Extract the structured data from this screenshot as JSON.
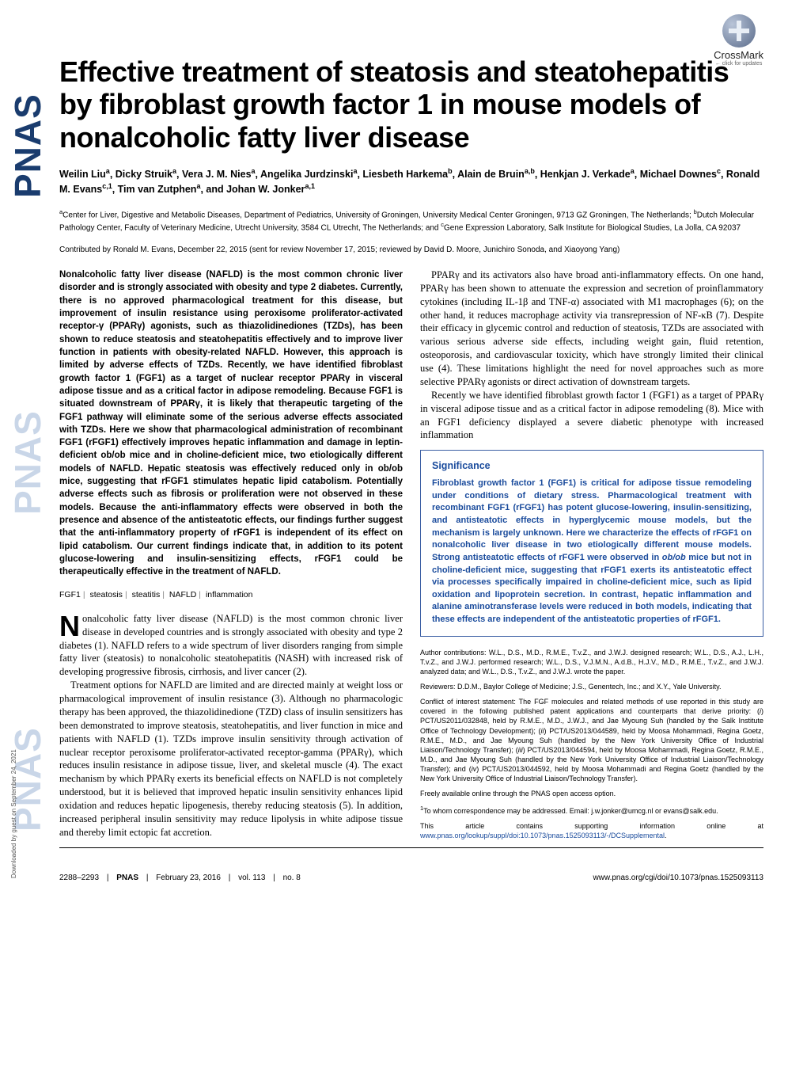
{
  "crossmark": {
    "label": "CrossMark",
    "sub": "← click for updates"
  },
  "title": "Effective treatment of steatosis and steatohepatitis by fibroblast growth factor 1 in mouse models of nonalcoholic fatty liver disease",
  "authors_html": "Weilin Liu<sup>a</sup>, Dicky Struik<sup>a</sup>, Vera J. M. Nies<sup>a</sup>, Angelika Jurdzinski<sup>a</sup>, Liesbeth Harkema<sup>b</sup>, Alain de Bruin<sup>a,b</sup>, Henkjan J. Verkade<sup>a</sup>, Michael Downes<sup>c</sup>, Ronald M. Evans<sup>c,1</sup>, Tim van Zutphen<sup>a</sup>, and Johan W. Jonker<sup>a,1</sup>",
  "affiliations_html": "<sup>a</sup>Center for Liver, Digestive and Metabolic Diseases, Department of Pediatrics, University of Groningen, University Medical Center Groningen, 9713 GZ Groningen, The Netherlands; <sup>b</sup>Dutch Molecular Pathology Center, Faculty of Veterinary Medicine, Utrecht University, 3584 CL Utrecht, The Netherlands; and <sup>c</sup>Gene Expression Laboratory, Salk Institute for Biological Studies, La Jolla, CA 92037",
  "contributed": "Contributed by Ronald M. Evans, December 22, 2015 (sent for review November 17, 2015; reviewed by David D. Moore, Junichiro Sonoda, and Xiaoyong Yang)",
  "abstract": "Nonalcoholic fatty liver disease (NAFLD) is the most common chronic liver disorder and is strongly associated with obesity and type 2 diabetes. Currently, there is no approved pharmacological treatment for this disease, but improvement of insulin resistance using peroxisome proliferator-activated receptor-γ (PPARγ) agonists, such as thiazolidinediones (TZDs), has been shown to reduce steatosis and steatohepatitis effectively and to improve liver function in patients with obesity-related NAFLD. However, this approach is limited by adverse effects of TZDs. Recently, we have identified fibroblast growth factor 1 (FGF1) as a target of nuclear receptor PPARγ in visceral adipose tissue and as a critical factor in adipose remodeling. Because FGF1 is situated downstream of PPARγ, it is likely that therapeutic targeting of the FGF1 pathway will eliminate some of the serious adverse effects associated with TZDs. Here we show that pharmacological administration of recombinant FGF1 (rFGF1) effectively improves hepatic inflammation and damage in leptin-deficient ob/ob mice and in choline-deficient mice, two etiologically different models of NAFLD. Hepatic steatosis was effectively reduced only in ob/ob mice, suggesting that rFGF1 stimulates hepatic lipid catabolism. Potentially adverse effects such as fibrosis or proliferation were not observed in these models. Because the anti-inflammatory effects were observed in both the presence and absence of the antisteatotic effects, our findings further suggest that the anti-inflammatory property of rFGF1 is independent of its effect on lipid catabolism. Our current findings indicate that, in addition to its potent glucose-lowering and insulin-sensitizing effects, rFGF1 could be therapeutically effective in the treatment of NAFLD.",
  "keywords": [
    "FGF1",
    "steatosis",
    "steatitis",
    "NAFLD",
    "inflammation"
  ],
  "body_left_p1_html": "<span class=\"dropcap\">N</span>onalcoholic fatty liver disease (NAFLD) is the most common chronic liver disease in developed countries and is strongly associated with obesity and type 2 diabetes (1). NAFLD refers to a wide spectrum of liver disorders ranging from simple fatty liver (steatosis) to nonalcoholic steatohepatitis (NASH) with increased risk of developing progressive fibrosis, cirrhosis, and liver cancer (2).",
  "body_left_p2": "Treatment options for NAFLD are limited and are directed mainly at weight loss or pharmacological improvement of insulin resistance (3). Although no pharmacologic therapy has been approved, the thiazolidinedione (TZD) class of insulin sensitizers has been demonstrated to improve steatosis, steatohepatitis, and liver function in mice and patients with NAFLD (1). TZDs improve insulin sensitivity through activation of nuclear receptor peroxisome proliferator-activated receptor-gamma (PPARγ), which reduces insulin resistance in adipose tissue, liver, and skeletal muscle (4). The exact mechanism by which PPARγ exerts its beneficial effects on NAFLD is not completely understood, but it is believed that improved hepatic insulin sensitivity enhances lipid oxidation and reduces hepatic lipogenesis, thereby reducing steatosis (5). In addition, increased peripheral insulin sensitivity may reduce lipolysis in white adipose tissue and thereby limit ectopic fat accretion.",
  "body_right_p1": "PPARγ and its activators also have broad anti-inflammatory effects. On one hand, PPARγ has been shown to attenuate the expression and secretion of proinflammatory cytokines (including IL-1β and TNF-α) associated with M1 macrophages (6); on the other hand, it reduces macrophage activity via transrepression of NF-κB (7). Despite their efficacy in glycemic control and reduction of steatosis, TZDs are associated with various serious adverse side effects, including weight gain, fluid retention, osteoporosis, and cardiovascular toxicity, which have strongly limited their clinical use (4). These limitations highlight the need for novel approaches such as more selective PPARγ agonists or direct activation of downstream targets.",
  "body_right_p2": "Recently we have identified fibroblast growth factor 1 (FGF1) as a target of PPARγ in visceral adipose tissue and as a critical factor in adipose remodeling (8). Mice with an FGF1 deficiency displayed a severe diabetic phenotype with increased inflammation",
  "significance": {
    "title": "Significance",
    "text_html": "Fibroblast growth factor 1 (FGF1) is critical for adipose tissue remodeling under conditions of dietary stress. Pharmacological treatment with recombinant FGF1 (rFGF1) has potent glucose-lowering, insulin-sensitizing, and antisteatotic effects in hyperglycemic mouse models, but the mechanism is largely unknown. Here we characterize the effects of rFGF1 on nonalcoholic liver disease in two etiologically different mouse models. Strong antisteatotic effects of rFGF1 were observed in <i>ob/ob</i> mice but not in choline-deficient mice, suggesting that rFGF1 exerts its antisteatotic effect via processes specifically impaired in choline-deficient mice, such as lipid oxidation and lipoprotein secretion. In contrast, hepatic inflammation and alanine aminotransferase levels were reduced in both models, indicating that these effects are independent of the antisteatotic properties of rFGF1."
  },
  "author_contrib": "Author contributions: W.L., D.S., M.D., R.M.E., T.v.Z., and J.W.J. designed research; W.L., D.S., A.J., L.H., T.v.Z., and J.W.J. performed research; W.L., D.S., V.J.M.N., A.d.B., H.J.V., M.D., R.M.E., T.v.Z., and J.W.J. analyzed data; and W.L., D.S., T.v.Z., and J.W.J. wrote the paper.",
  "reviewers": "Reviewers: D.D.M., Baylor College of Medicine; J.S., Genentech, Inc.; and X.Y., Yale University.",
  "coi_html": "Conflict of interest statement: The FGF molecules and related methods of use reported in this study are covered in the following published patent applications and counterparts that derive priority: (<i>i</i>) PCT/US2011/032848, held by R.M.E., M.D., J.W.J., and Jae Myoung Suh (handled by the Salk Institute Office of Technology Development); (<i>ii</i>) PCT/US2013/044589, held by Moosa Mohammadi, Regina Goetz, R.M.E., M.D., and Jae Myoung Suh (handled by the New York University Office of Industrial Liaison/Technology Transfer); (<i>iii</i>) PCT/US2013/044594, held by Moosa Mohammadi, Regina Goetz, R.M.E., M.D., and Jae Myoung Suh (handled by the New York University Office of Industrial Liaison/Technology Transfer); and (<i>iv</i>) PCT/US2013/044592, held by Moosa Mohammadi and Regina Goetz (handled by the New York University Office of Industrial Liaison/Technology Transfer).",
  "open_access": "Freely available online through the PNAS open access option.",
  "correspondence_html": "<sup>1</sup>To whom correspondence may be addressed. Email: j.w.jonker@umcg.nl or evans@salk.edu.",
  "supp_html": "This article contains supporting information online at <a href=\"#\">www.pnas.org/lookup/suppl/doi:10.1073/pnas.1525093113/-/DCSupplemental</a>.",
  "footer": {
    "pages": "2288–2293",
    "journal": "PNAS",
    "date": "February 23, 2016",
    "vol": "vol. 113",
    "no": "no. 8",
    "doi": "www.pnas.org/cgi/doi/10.1073/pnas.1525093113"
  },
  "sidebar": "PNAS",
  "download_note": "Downloaded by guest on September 24, 2021"
}
